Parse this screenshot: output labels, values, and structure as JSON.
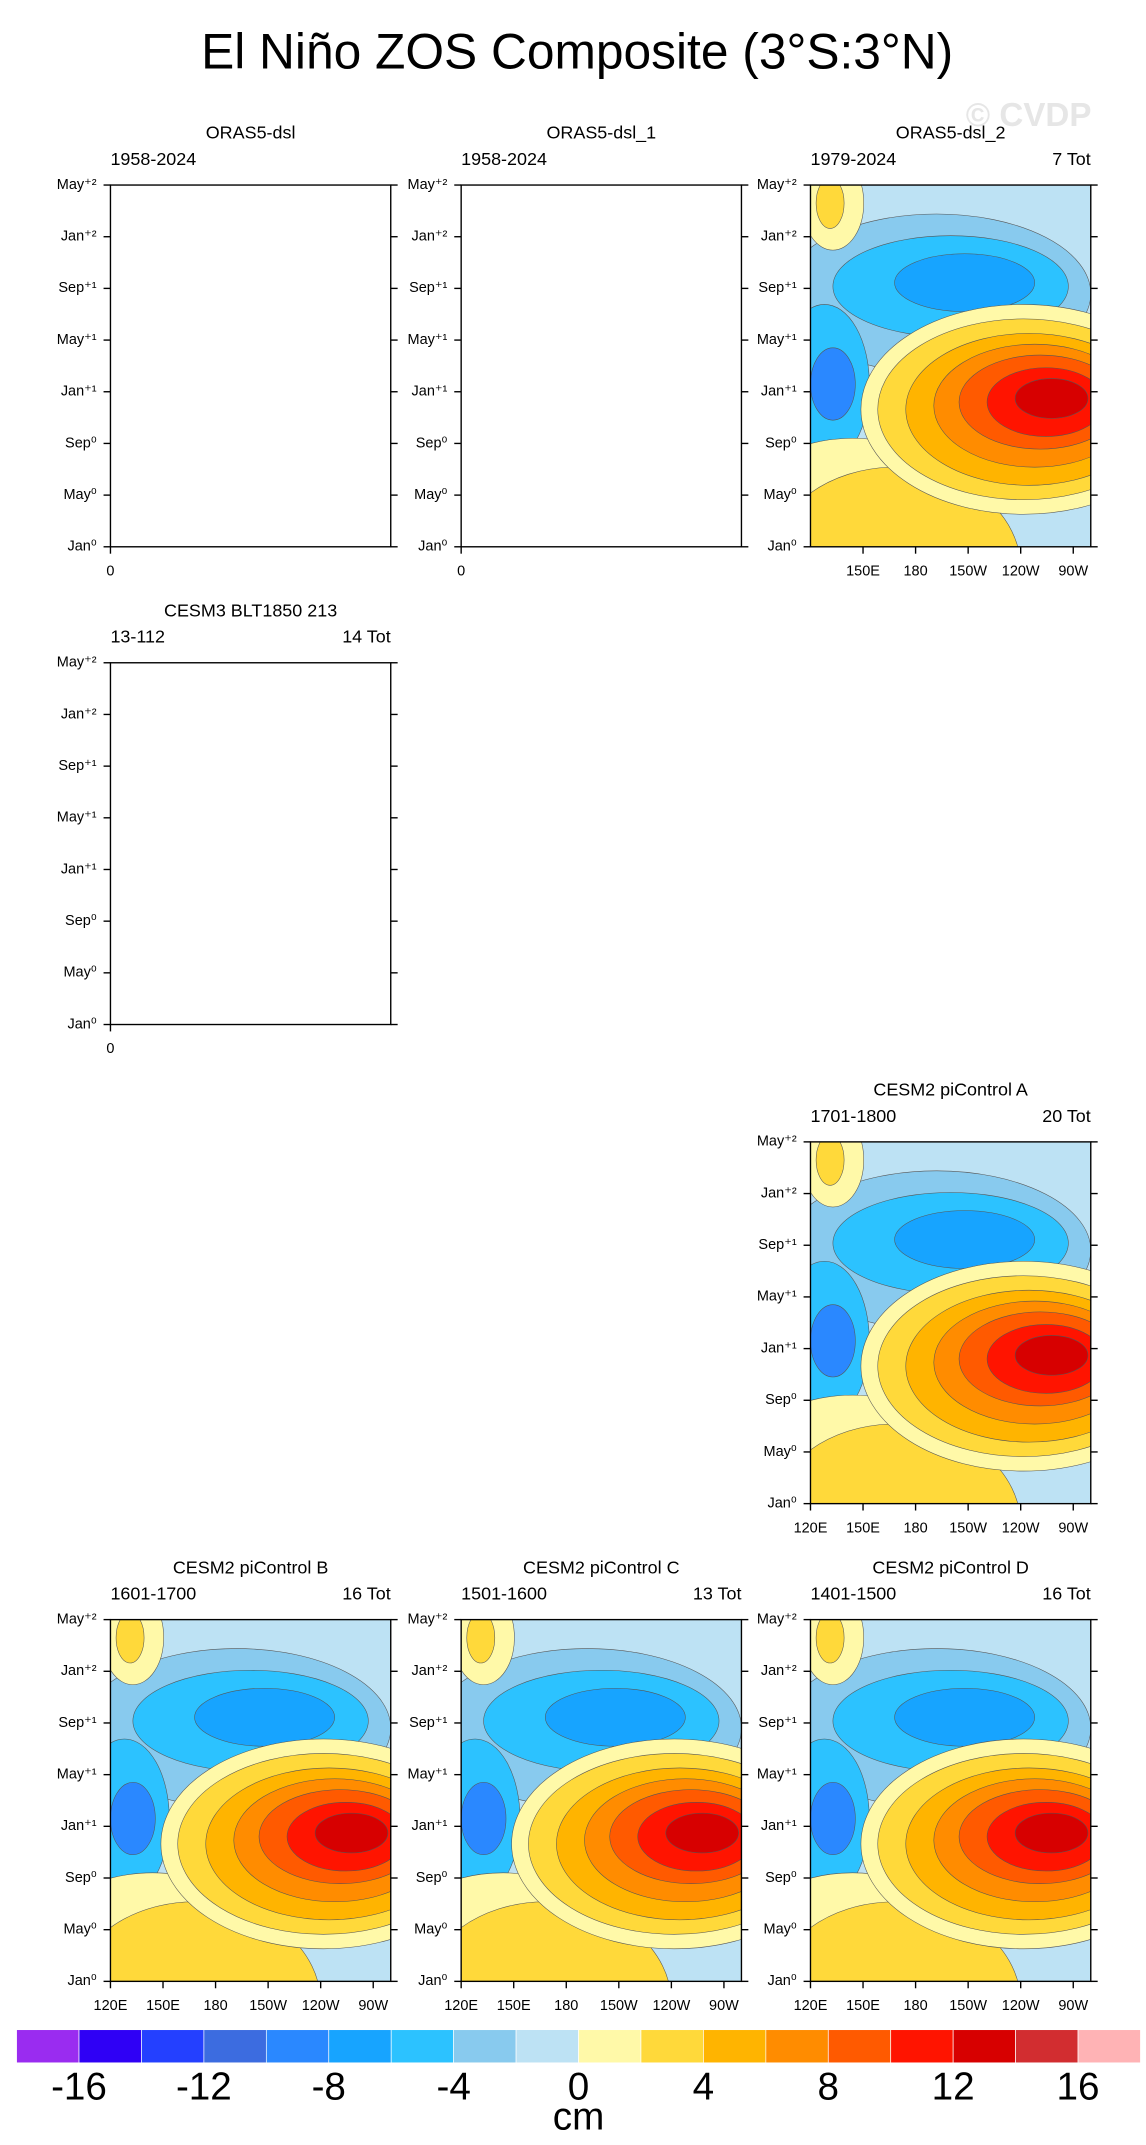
{
  "title": "El Niño ZOS Composite (3°S:3°N)",
  "watermark": "© CVDP",
  "time_axis": [
    "Jan⁰",
    "May⁰",
    "Sep⁰",
    "Jan⁺¹",
    "May⁺¹",
    "Sep⁺¹",
    "Jan⁺²",
    "May⁺²"
  ],
  "panels": [
    {
      "title": "ORAS5-dsl",
      "period": "1958-2024",
      "xlim": [
        0,
        1
      ],
      "xticks": [
        0
      ],
      "contours": false
    },
    {
      "title": "ORAS5-dsl_1",
      "period": "1958-2024",
      "xlim": [
        0,
        1
      ],
      "xticks": [
        0
      ],
      "contours": false
    },
    {
      "title": "ORAS5-dsl_2",
      "period": "1979-2024",
      "count": "7 Tot",
      "xlim": [
        120,
        280
      ],
      "xticks": [
        {
          "value": 150,
          "label": "150E"
        },
        180,
        {
          "value": 210,
          "label": "150W"
        },
        {
          "value": 240,
          "label": "120W"
        },
        {
          "value": 270,
          "label": "90W"
        }
      ],
      "contours": true
    },
    {
      "title": "CESM3 BLT1850 213",
      "period": "13-112",
      "count": "14 Tot",
      "xlim": [
        0,
        1
      ],
      "xticks": [
        0
      ],
      "contours": false
    },
    {
      "title": "CESM2 piControl A",
      "period": "1701-1800",
      "count": "20 Tot",
      "xlim": [
        120,
        280
      ],
      "xticks": [
        {
          "value": 120,
          "label": "120E"
        },
        {
          "value": 150,
          "label": "150E"
        },
        180,
        {
          "value": 210,
          "label": "150W"
        },
        {
          "value": 240,
          "label": "120W"
        },
        {
          "value": 270,
          "label": "90W"
        }
      ],
      "contours": true
    },
    {
      "title": "CESM2 piControl B",
      "period": "1601-1700",
      "count": "16 Tot",
      "xlim": [
        120,
        280
      ],
      "xticks": [
        {
          "value": 120,
          "label": "120E"
        },
        {
          "value": 150,
          "label": "150E"
        },
        180,
        {
          "value": 210,
          "label": "150W"
        },
        {
          "value": 240,
          "label": "120W"
        },
        {
          "value": 270,
          "label": "90W"
        }
      ],
      "contours": true
    },
    {
      "title": "CESM2 piControl C",
      "period": "1501-1600",
      "count": "13 Tot",
      "xlim": [
        120,
        280
      ],
      "xticks": [
        {
          "value": 120,
          "label": "120E"
        },
        {
          "value": 150,
          "label": "150E"
        },
        180,
        {
          "value": 210,
          "label": "150W"
        },
        {
          "value": 240,
          "label": "120W"
        },
        {
          "value": 270,
          "label": "90W"
        }
      ],
      "contours": true
    },
    {
      "title": "CESM2 piControl D",
      "period": "1401-1500",
      "count": "16 Tot",
      "xlim": [
        120,
        280
      ],
      "xticks": [
        {
          "value": 120,
          "label": "120E"
        },
        {
          "value": 150,
          "label": "150E"
        },
        180,
        {
          "value": 210,
          "label": "150W"
        },
        {
          "value": 240,
          "label": "120W"
        },
        {
          "value": 270,
          "label": "90W"
        }
      ],
      "contours": true
    }
  ],
  "colorbar": {
    "unit": "cm",
    "lim": [
      -18,
      18
    ],
    "ticks": [
      -16,
      -12,
      -8,
      -4,
      0,
      4,
      8,
      12,
      16
    ],
    "colors": [
      "#9a2cf0",
      "#2f00f5",
      "#2440ff",
      "#3c6ce0",
      "#2a88ff",
      "#17a4ff",
      "#2cc2ff",
      "#88caee",
      "#bde2f4",
      "#fff9a8",
      "#ffd93a",
      "#ffb400",
      "#ff8c00",
      "#ff5a00",
      "#ff1400",
      "#d70000",
      "#d22d30",
      "#ffb3b5"
    ]
  }
}
